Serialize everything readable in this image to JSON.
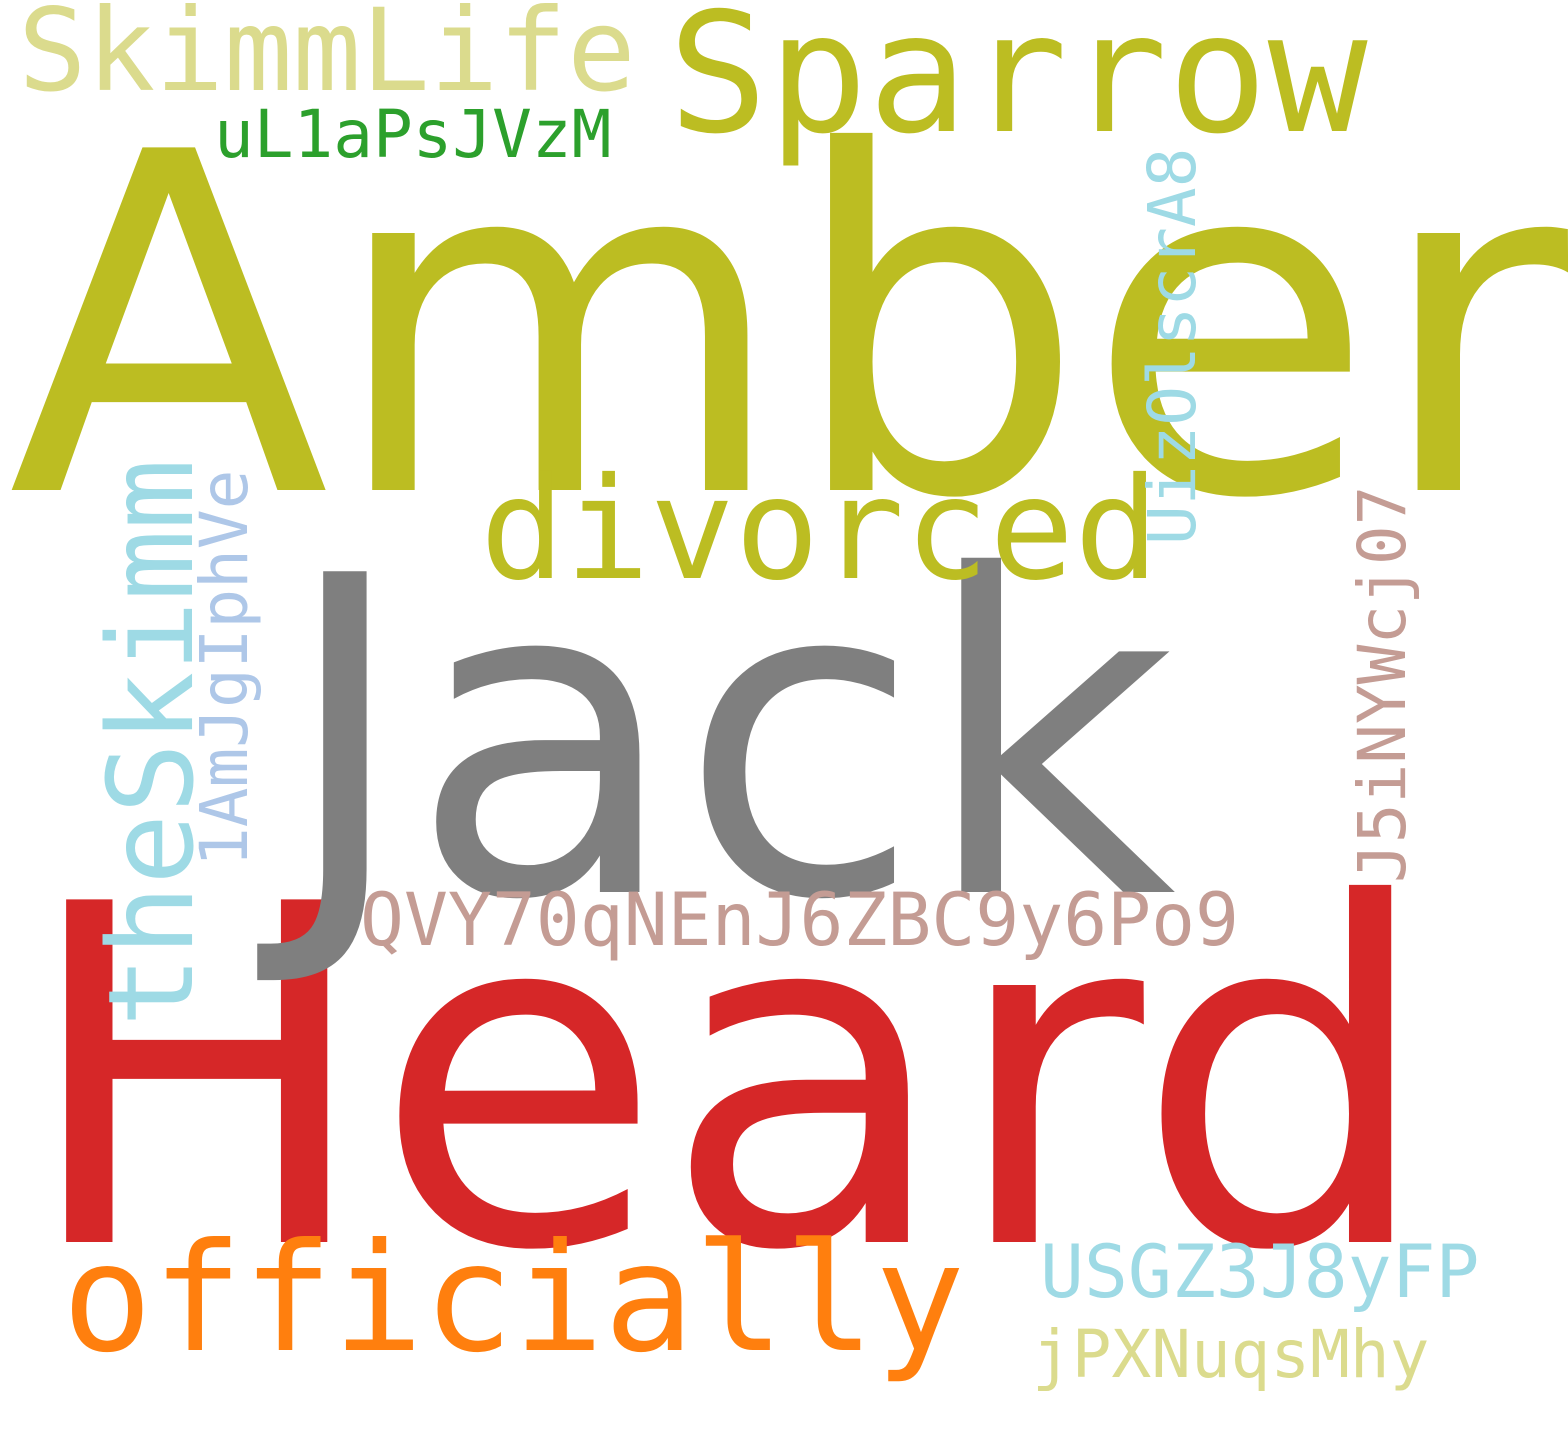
{
  "words": [
    {
      "key": "amber",
      "text": "Amber",
      "color": "#bcbd22"
    },
    {
      "key": "heard",
      "text": "Heard",
      "color": "#d62728"
    },
    {
      "key": "jack",
      "text": "Jack",
      "color": "#7f7f7f"
    },
    {
      "key": "sparrow",
      "text": "Sparrow",
      "color": "#bcbd22"
    },
    {
      "key": "skimmlife",
      "text": "SkimmLife",
      "color": "#dbdb8d"
    },
    {
      "key": "ul1",
      "text": "uL1aPsJVzM",
      "color": "#2ca02c"
    },
    {
      "key": "divorced",
      "text": "divorced",
      "color": "#bcbd22"
    },
    {
      "key": "theskimm",
      "text": "theSkimm",
      "color": "#9edae5"
    },
    {
      "key": "amjg",
      "text": "1AmJgIphVe",
      "color": "#aec7e8"
    },
    {
      "key": "uizo",
      "text": "UizOlscrA8",
      "color": "#9edae5"
    },
    {
      "key": "j5i",
      "text": "J5iNYWcj07",
      "color": "#c49c94"
    },
    {
      "key": "qvy",
      "text": "QVY70qNEnJ6ZBC9y6Po9",
      "color": "#c49c94"
    },
    {
      "key": "officially",
      "text": "officially",
      "color": "#ff7f0e"
    },
    {
      "key": "usgz",
      "text": "USGZ3J8yFP",
      "color": "#9edae5"
    },
    {
      "key": "jpx",
      "text": "jPXNuqsMhy",
      "color": "#dbdb8d"
    }
  ]
}
